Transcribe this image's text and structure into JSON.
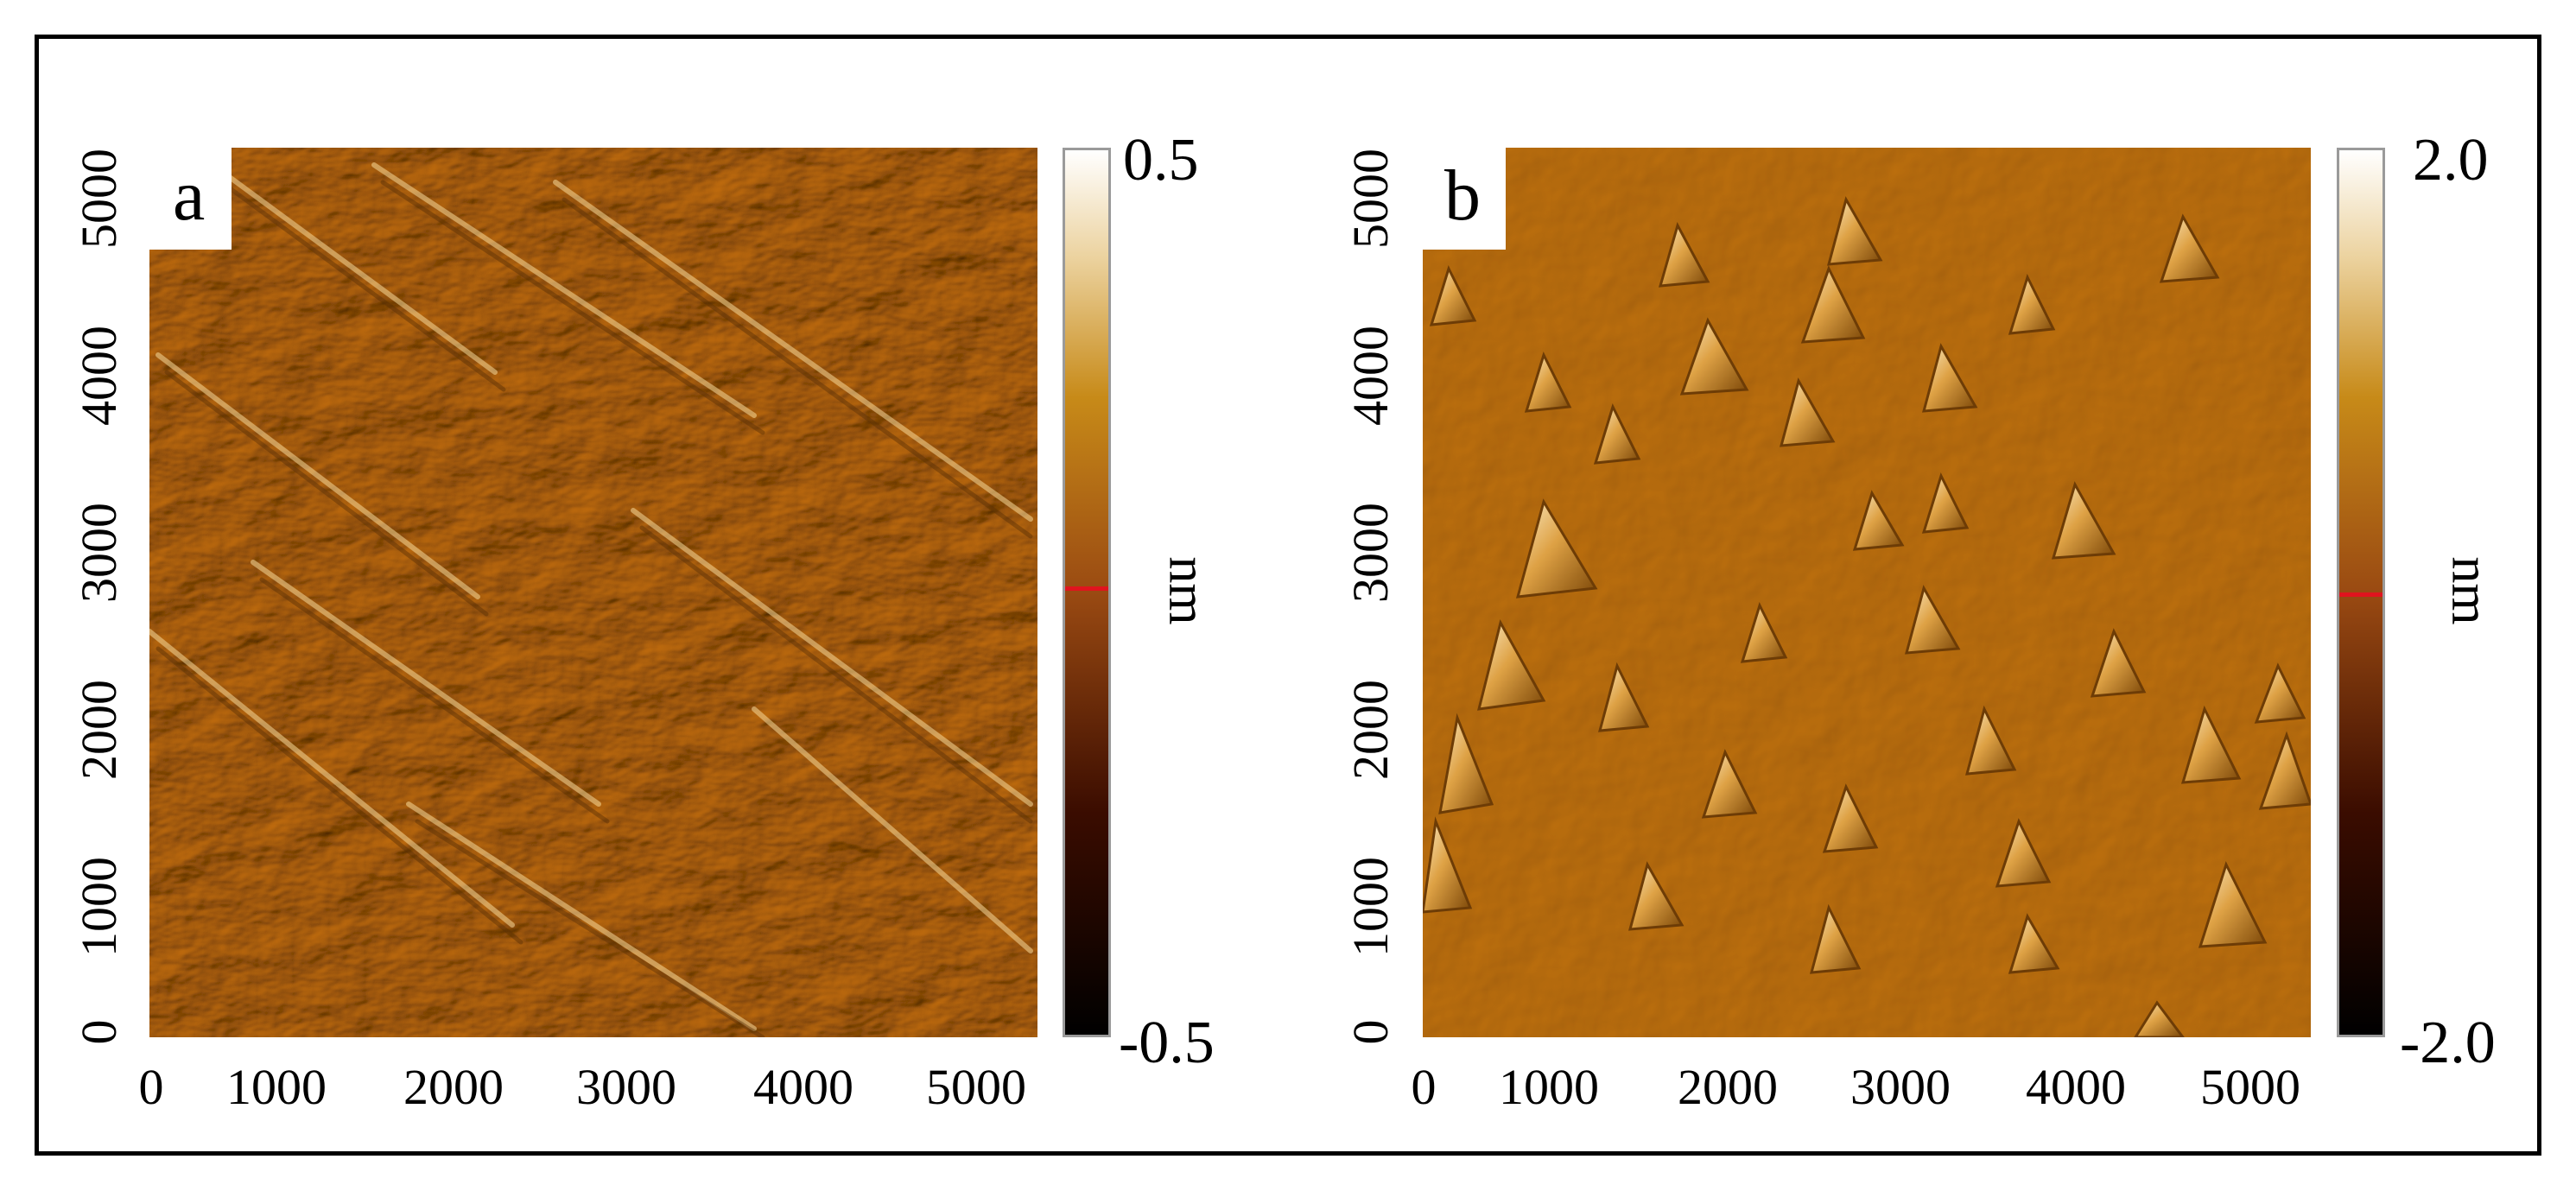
{
  "panels": [
    {
      "letter": "a",
      "y_ticks": [
        "0",
        "1000",
        "2000",
        "3000",
        "4000",
        "5000"
      ],
      "x_ticks": [
        "0",
        "1000",
        "2000",
        "3000",
        "4000",
        "5000"
      ],
      "colorbar": {
        "max": "0.5",
        "min": "-0.5",
        "unit": "nm"
      }
    },
    {
      "letter": "b",
      "y_ticks": [
        "0",
        "1000",
        "2000",
        "3000",
        "4000",
        "5000"
      ],
      "x_ticks": [
        "0",
        "1000",
        "2000",
        "3000",
        "4000",
        "5000"
      ],
      "colorbar": {
        "max": "2.0",
        "min": "-2.0",
        "unit": "nm"
      }
    }
  ],
  "colors": {
    "surface_a": "#b57a22",
    "surface_b": "#c28420",
    "marker": "#e0141e"
  }
}
